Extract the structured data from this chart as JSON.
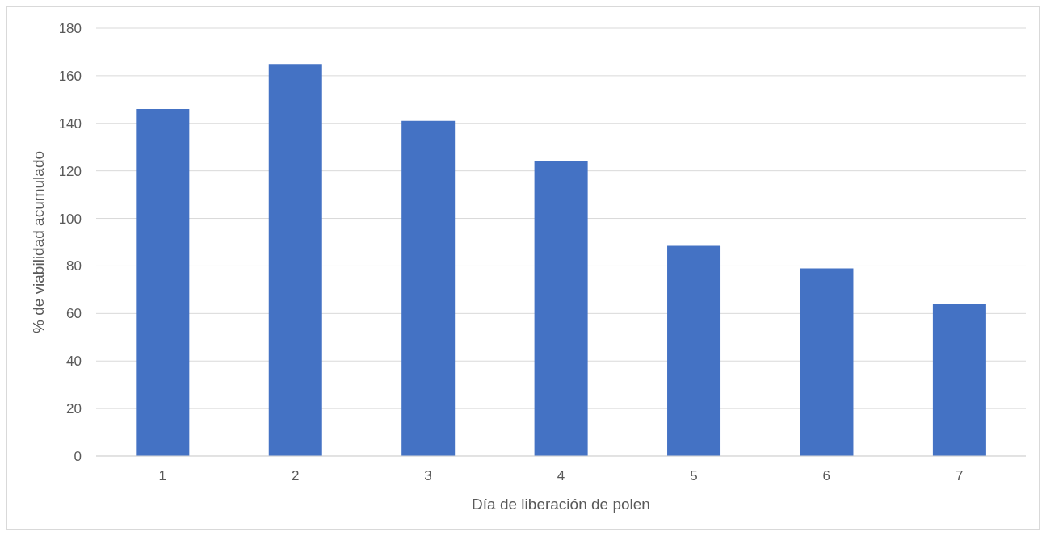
{
  "chart_data": {
    "type": "bar",
    "xlabel": "Día de liberación de polen",
    "ylabel": "% de viabilidad acumulado",
    "categories": [
      "1",
      "2",
      "3",
      "4",
      "5",
      "6",
      "7"
    ],
    "values": [
      146,
      165,
      141,
      124,
      88.5,
      79,
      64
    ],
    "color": "#4472c4",
    "ylim": [
      0,
      180
    ],
    "yticks": [
      0,
      20,
      40,
      60,
      80,
      100,
      120,
      140,
      160,
      180
    ],
    "grid": "y",
    "legend": false
  }
}
